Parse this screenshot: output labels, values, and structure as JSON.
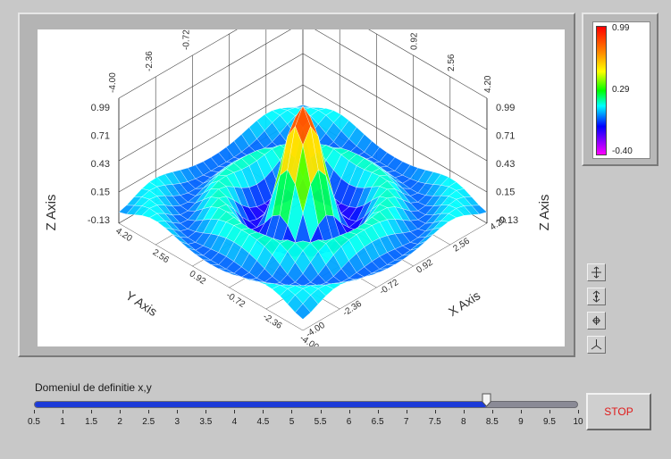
{
  "graph": {
    "x_axis_title": "X Axis",
    "y_axis_title": "Y Axis",
    "z_axis_title": "Z Axis",
    "x_ticks": [
      "4.20",
      "2.56",
      "0.92",
      "-0.72",
      "-2.36",
      "-4.00"
    ],
    "y_ticks": [
      "-4.00",
      "-2.36",
      "-0.72",
      "0.92",
      "2.56",
      "4.20"
    ],
    "z_ticks": [
      "0.99",
      "0.71",
      "0.43",
      "0.15",
      "-0.13"
    ],
    "bottom_x_ticks": [
      "-4.00",
      "-2.36",
      "-0.72",
      "0.92",
      "2.56",
      "4.20"
    ],
    "bottom_y_ticks": [
      "4.20",
      "2.56",
      "0.92",
      "-0.72",
      "-2.36",
      "-4.00"
    ],
    "surface": "sinc(r)"
  },
  "colorramp": {
    "max_label": "0.99",
    "mid_label": "0.29",
    "min_label": "-0.40",
    "colors": [
      "#ff0000",
      "#ff8800",
      "#ffff00",
      "#00ff00",
      "#00ffff",
      "#0000ff",
      "#ff00ff"
    ]
  },
  "tools": [
    "pan-tool",
    "zoom-tool",
    "rotate-tool",
    "axis-tool"
  ],
  "slider": {
    "label": "Domeniul de definitie x,y",
    "value": 8.4,
    "min": 0.5,
    "max": 10,
    "ticks": [
      "0.5",
      "1",
      "1.5",
      "2",
      "2.5",
      "3",
      "3.5",
      "4",
      "4.5",
      "5",
      "5.5",
      "6",
      "6.5",
      "7",
      "7.5",
      "8",
      "8.5",
      "9",
      "9.5",
      "10"
    ]
  },
  "stop_button": {
    "label": "STOP",
    "color": "#e01a1a"
  }
}
